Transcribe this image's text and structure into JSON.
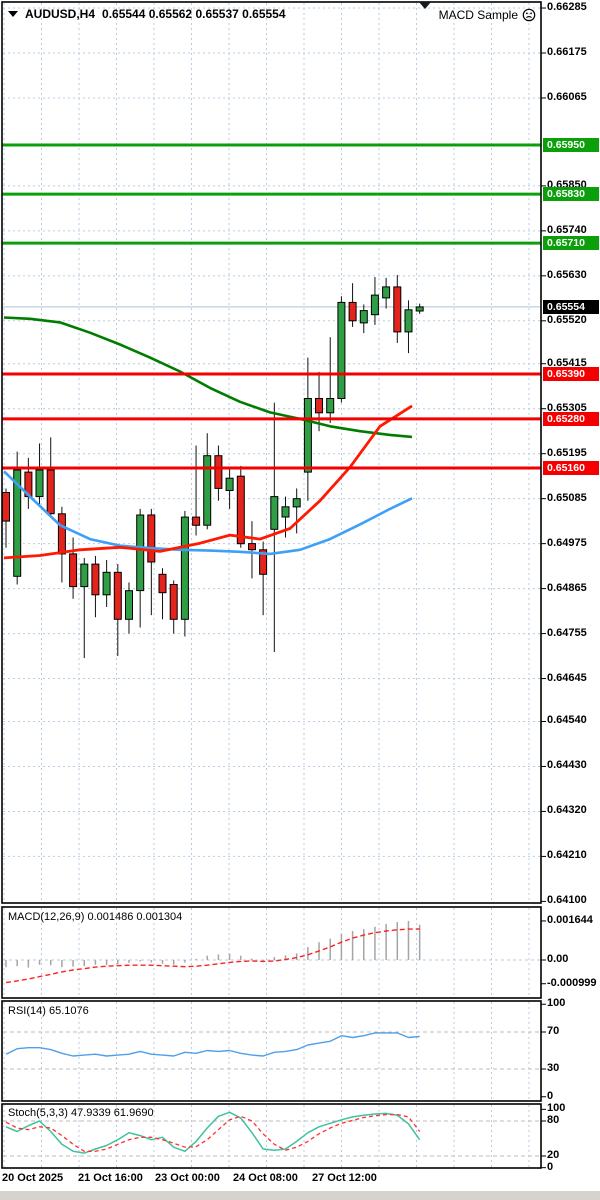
{
  "window": {
    "symbol_period": "AUDUSD,H4",
    "ohlc_text": "0.65544 0.65562 0.65537 0.65554",
    "overlay_label": "MACD Sample"
  },
  "colors": {
    "grid": "#b9cbe4",
    "bull": "#2f9e45",
    "bear": "#e3241d",
    "wick": "#111111",
    "sr_red": "#f40000",
    "sr_green": "#0ba00b",
    "ma_green": "#007d00",
    "ma_blue": "#3e9ff7",
    "ma_red": "#ff1900",
    "macd_hist": "#a5a5a5",
    "macd_signal": "#ff2020",
    "rsi_line": "#4f9fe8",
    "stoch_k": "#3fc1a0",
    "stoch_d": "#ff3030",
    "current_line": "#b0c2d8",
    "level_dash": "#bdbdbd",
    "badge_green": "#0ba00b",
    "badge_red": "#f40000",
    "badge_black": "#000000",
    "border": "#000000"
  },
  "price_axis": {
    "ticks": [
      {
        "v": 0.66285,
        "label": "0.66285"
      },
      {
        "v": 0.66175,
        "label": "0.66175"
      },
      {
        "v": 0.66065,
        "label": "0.66065"
      },
      {
        "v": 0.6585,
        "label": "0.65850"
      },
      {
        "v": 0.6574,
        "label": "0.65740"
      },
      {
        "v": 0.6563,
        "label": "0.65630"
      },
      {
        "v": 0.6552,
        "label": "0.65520"
      },
      {
        "v": 0.65415,
        "label": "0.65415"
      },
      {
        "v": 0.65305,
        "label": "0.65305"
      },
      {
        "v": 0.65195,
        "label": "0.65195"
      },
      {
        "v": 0.65085,
        "label": "0.65085"
      },
      {
        "v": 0.64975,
        "label": "0.64975"
      },
      {
        "v": 0.64865,
        "label": "0.64865"
      },
      {
        "v": 0.64755,
        "label": "0.64755"
      },
      {
        "v": 0.64645,
        "label": "0.64645"
      },
      {
        "v": 0.6454,
        "label": "0.64540"
      },
      {
        "v": 0.6443,
        "label": "0.64430"
      },
      {
        "v": 0.6432,
        "label": "0.64320"
      },
      {
        "v": 0.6421,
        "label": "0.64210"
      },
      {
        "v": 0.641,
        "label": "0.64100"
      }
    ],
    "badges": [
      {
        "v": 0.6595,
        "label": "0.65950",
        "type": "green"
      },
      {
        "v": 0.6583,
        "label": "0.65830",
        "type": "green"
      },
      {
        "v": 0.6571,
        "label": "0.65710",
        "type": "green"
      },
      {
        "v": 0.65554,
        "label": "0.65554",
        "type": "black"
      },
      {
        "v": 0.6539,
        "label": "0.65390",
        "type": "red"
      },
      {
        "v": 0.6528,
        "label": "0.65280",
        "type": "red"
      },
      {
        "v": 0.6516,
        "label": "0.65160",
        "type": "red"
      }
    ]
  },
  "chart_data": {
    "type": "candlestick",
    "symbol": "AUDUSD",
    "timeframe": "H4",
    "current_price": 0.65554,
    "candles_ohlc": [
      [
        0.651,
        0.6511,
        0.64965,
        0.6503
      ],
      [
        0.64895,
        0.652,
        0.64875,
        0.65155
      ],
      [
        0.6515,
        0.65185,
        0.6506,
        0.6509
      ],
      [
        0.6509,
        0.6522,
        0.6507,
        0.65155
      ],
      [
        0.65155,
        0.65235,
        0.6504,
        0.65048
      ],
      [
        0.65048,
        0.65065,
        0.6488,
        0.6495
      ],
      [
        0.6495,
        0.6499,
        0.6484,
        0.6487
      ],
      [
        0.6487,
        0.6494,
        0.64695,
        0.64925
      ],
      [
        0.64925,
        0.64945,
        0.64795,
        0.6485
      ],
      [
        0.6485,
        0.64935,
        0.6482,
        0.64905
      ],
      [
        0.64905,
        0.64925,
        0.647,
        0.6479
      ],
      [
        0.6479,
        0.6488,
        0.64755,
        0.6486
      ],
      [
        0.6486,
        0.6506,
        0.6477,
        0.65045
      ],
      [
        0.65045,
        0.6506,
        0.648,
        0.6493
      ],
      [
        0.649,
        0.64915,
        0.6479,
        0.64855
      ],
      [
        0.64875,
        0.64885,
        0.64755,
        0.6479
      ],
      [
        0.6479,
        0.65055,
        0.64748,
        0.6504
      ],
      [
        0.6504,
        0.65215,
        0.64995,
        0.6502
      ],
      [
        0.6502,
        0.65245,
        0.6501,
        0.6519
      ],
      [
        0.6519,
        0.65215,
        0.6508,
        0.6511
      ],
      [
        0.65105,
        0.6516,
        0.6506,
        0.65135
      ],
      [
        0.6514,
        0.65165,
        0.64965,
        0.64975
      ],
      [
        0.64975,
        0.6503,
        0.6489,
        0.6496
      ],
      [
        0.6496,
        0.6498,
        0.648,
        0.649
      ],
      [
        0.6501,
        0.6532,
        0.6471,
        0.6509
      ],
      [
        0.6504,
        0.6509,
        0.6499,
        0.65065
      ],
      [
        0.65065,
        0.6511,
        0.65,
        0.65085
      ],
      [
        0.6515,
        0.6543,
        0.6508,
        0.6533
      ],
      [
        0.6533,
        0.65395,
        0.6525,
        0.65295
      ],
      [
        0.65295,
        0.6548,
        0.6527,
        0.6533
      ],
      [
        0.6533,
        0.6558,
        0.6532,
        0.65565
      ],
      [
        0.65565,
        0.65612,
        0.65505,
        0.6552
      ],
      [
        0.65515,
        0.6556,
        0.6549,
        0.65545
      ],
      [
        0.65535,
        0.65627,
        0.6551,
        0.65583
      ],
      [
        0.65576,
        0.65625,
        0.6555,
        0.65603
      ],
      [
        0.65603,
        0.65632,
        0.65466,
        0.65493
      ],
      [
        0.65493,
        0.6557,
        0.65441,
        0.65547
      ],
      [
        0.65544,
        0.65562,
        0.65537,
        0.65554
      ]
    ],
    "hlines": [
      {
        "price": 0.6595,
        "color": "green"
      },
      {
        "price": 0.6583,
        "color": "green"
      },
      {
        "price": 0.6571,
        "color": "green"
      },
      {
        "price": 0.6539,
        "color": "red"
      },
      {
        "price": 0.6528,
        "color": "red"
      },
      {
        "price": 0.6516,
        "color": "red"
      }
    ],
    "ma_green": [
      [
        4,
        0.65528
      ],
      [
        30,
        0.65525
      ],
      [
        60,
        0.65516
      ],
      [
        90,
        0.65491
      ],
      [
        120,
        0.65462
      ],
      [
        150,
        0.6543
      ],
      [
        180,
        0.65396
      ],
      [
        210,
        0.65356
      ],
      [
        240,
        0.65322
      ],
      [
        270,
        0.65296
      ],
      [
        300,
        0.6528
      ],
      [
        330,
        0.65262
      ],
      [
        360,
        0.6525
      ],
      [
        390,
        0.65241
      ],
      [
        412,
        0.65236
      ]
    ],
    "ma_blue": [
      [
        4,
        0.65152
      ],
      [
        30,
        0.6509
      ],
      [
        60,
        0.6502
      ],
      [
        90,
        0.64986
      ],
      [
        120,
        0.6497
      ],
      [
        150,
        0.64964
      ],
      [
        180,
        0.6496
      ],
      [
        210,
        0.64958
      ],
      [
        240,
        0.64955
      ],
      [
        270,
        0.6495
      ],
      [
        300,
        0.6496
      ],
      [
        330,
        0.64986
      ],
      [
        360,
        0.65022
      ],
      [
        390,
        0.6506
      ],
      [
        412,
        0.65086
      ]
    ],
    "ma_red": [
      [
        4,
        0.6494
      ],
      [
        40,
        0.64946
      ],
      [
        80,
        0.6496
      ],
      [
        120,
        0.64966
      ],
      [
        160,
        0.64956
      ],
      [
        200,
        0.64976
      ],
      [
        230,
        0.64996
      ],
      [
        260,
        0.64986
      ],
      [
        290,
        0.65012
      ],
      [
        320,
        0.6508
      ],
      [
        350,
        0.65162
      ],
      [
        380,
        0.65262
      ],
      [
        412,
        0.65312
      ]
    ],
    "macd": {
      "title": "MACD(12,26,9) 0.001486 0.001304",
      "macd_value": 0.001486,
      "signal_value": 0.001304,
      "histogram": [
        -0.0003,
        -0.00026,
        -0.00032,
        -0.0002,
        -0.00022,
        -0.0003,
        -0.00028,
        -0.00026,
        -0.0002,
        -0.00022,
        -0.00018,
        -0.00012,
        -6e-05,
        -0.0001,
        -0.00016,
        -0.0002,
        -0.0001,
        4e-05,
        0.00018,
        0.00024,
        0.00026,
        0.00018,
        6e-05,
        -4e-05,
        0.00012,
        0.0002,
        0.00028,
        0.00055,
        0.00075,
        0.0009,
        0.0011,
        0.00122,
        0.0013,
        0.0014,
        0.00152,
        0.0016,
        0.001644,
        0.001486
      ],
      "signal": [
        -0.00095,
        -0.00088,
        -0.0008,
        -0.0007,
        -0.0006,
        -0.0005,
        -0.00042,
        -0.00036,
        -0.0003,
        -0.00026,
        -0.00024,
        -0.00022,
        -0.00022,
        -0.00022,
        -0.00024,
        -0.00026,
        -0.00028,
        -0.00026,
        -0.00022,
        -0.00016,
        -0.0001,
        -6e-05,
        -4e-05,
        -6e-05,
        -4e-05,
        2e-05,
        0.0001,
        0.00022,
        0.00038,
        0.00055,
        0.00075,
        0.00092,
        0.00105,
        0.00115,
        0.00122,
        0.00127,
        0.0013,
        0.001304
      ],
      "axis": [
        {
          "v": 0.001644,
          "label": "0.001644"
        },
        {
          "v": 0.0,
          "label": "0.00"
        },
        {
          "v": -0.000999,
          "label": "-0.000999"
        }
      ]
    },
    "rsi": {
      "title": "RSI(14) 65.1076",
      "value": 65.1076,
      "series": [
        46,
        52,
        53,
        53,
        51,
        47,
        44,
        45,
        46,
        44,
        45,
        46,
        49,
        46,
        45,
        44,
        48,
        47,
        50,
        49,
        50,
        47,
        45,
        44,
        48,
        49,
        51,
        56,
        58,
        60,
        66,
        64,
        66,
        69,
        69,
        69,
        64,
        65.1
      ],
      "levels": [
        70,
        30
      ],
      "axis": [
        {
          "v": 100,
          "label": "100"
        },
        {
          "v": 70,
          "label": "70"
        },
        {
          "v": 30,
          "label": "30"
        },
        {
          "v": 0,
          "label": "0"
        }
      ]
    },
    "stoch": {
      "title": "Stoch(5,3,3) 47.9339 61.9690",
      "k_value": 47.9339,
      "d_value": 61.969,
      "k_series": [
        70,
        62,
        72,
        80,
        62,
        40,
        28,
        25,
        32,
        38,
        48,
        60,
        55,
        48,
        52,
        35,
        28,
        45,
        68,
        88,
        95,
        85,
        60,
        32,
        30,
        32,
        45,
        60,
        70,
        76,
        82,
        87,
        90,
        92,
        93,
        90,
        75,
        47.9
      ],
      "d_series": [
        78,
        68,
        65,
        70,
        68,
        55,
        40,
        28,
        28,
        32,
        40,
        48,
        52,
        52,
        48,
        42,
        35,
        36,
        48,
        65,
        82,
        88,
        80,
        58,
        40,
        30,
        35,
        45,
        58,
        68,
        76,
        81,
        86,
        89,
        91,
        91,
        87,
        62.0
      ],
      "levels": [
        80,
        20
      ],
      "axis": [
        {
          "v": 100,
          "label": "100"
        },
        {
          "v": 80,
          "label": "80"
        },
        {
          "v": 20,
          "label": "20"
        },
        {
          "v": 0,
          "label": "0"
        }
      ]
    },
    "time_labels": [
      "20 Oct 2025",
      "21 Oct 16:00",
      "23 Oct 00:00",
      "24 Oct 08:00",
      "27 Oct 12:00"
    ]
  }
}
